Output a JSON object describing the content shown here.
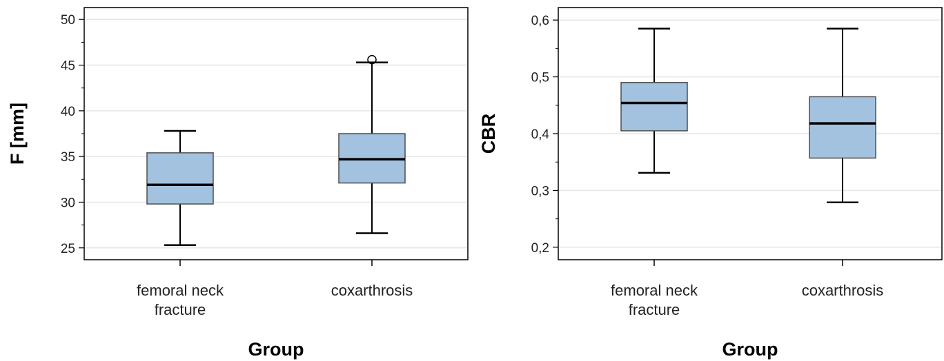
{
  "colors": {
    "box_fill": "#a3c2e0",
    "box_stroke": "#4d4d4d",
    "grid": "#e6e6e6",
    "axis": "#000000",
    "outlier": "#000000"
  },
  "chart_data": [
    {
      "type": "boxplot",
      "xlabel": "Group",
      "ylabel": "F [mm]",
      "categories": [
        "femoral neck fracture",
        "coxarthrosis"
      ],
      "category_lines": [
        [
          "femoral neck",
          "fracture"
        ],
        [
          "coxarthrosis"
        ]
      ],
      "ylim": [
        23.7,
        51.3
      ],
      "yticks": [
        25,
        30,
        35,
        40,
        45,
        50
      ],
      "ytick_labels": [
        "25",
        "30",
        "35",
        "40",
        "45",
        "50"
      ],
      "minor_ticks": true,
      "grid": true,
      "boxes": [
        {
          "min": 25.3,
          "q1": 29.8,
          "median": 31.9,
          "q3": 35.4,
          "max": 37.8,
          "outliers": []
        },
        {
          "min": 26.6,
          "q1": 32.1,
          "median": 34.7,
          "q3": 37.5,
          "max": 45.3,
          "outliers": [
            45.6
          ]
        }
      ]
    },
    {
      "type": "boxplot",
      "xlabel": "Group",
      "ylabel": "CBR",
      "categories": [
        "femoral neck fracture",
        "coxarthrosis"
      ],
      "category_lines": [
        [
          "femoral neck",
          "fracture"
        ],
        [
          "coxarthrosis"
        ]
      ],
      "ylim": [
        0.178,
        0.622
      ],
      "yticks": [
        0.2,
        0.3,
        0.4,
        0.5,
        0.6
      ],
      "ytick_labels": [
        "0,2",
        "0,3",
        "0,4",
        "0,5",
        "0,6"
      ],
      "minor_ticks": true,
      "grid": true,
      "boxes": [
        {
          "min": 0.331,
          "q1": 0.405,
          "median": 0.454,
          "q3": 0.49,
          "max": 0.585,
          "outliers": []
        },
        {
          "min": 0.279,
          "q1": 0.357,
          "median": 0.418,
          "q3": 0.465,
          "max": 0.585,
          "outliers": []
        }
      ]
    }
  ]
}
